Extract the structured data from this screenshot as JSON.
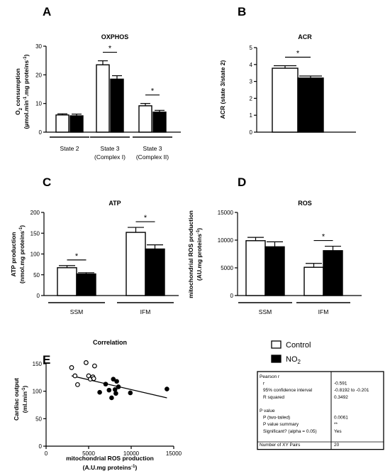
{
  "legend": [
    {
      "label": "Control",
      "color": "#ffffff"
    },
    {
      "label": "NO",
      "sub": "2",
      "color": "#000000"
    }
  ],
  "chart_data": [
    {
      "id": "A",
      "type": "bar",
      "title": "OXPHOS",
      "ylabel_line1": "O",
      "ylabel_sub": "2",
      "ylabel_rest": " consumption",
      "ylabel_line2": "(µmol.min",
      "ylabel_sup": "-1",
      "ylabel_line2b": ".mg proteins",
      "ylabel_sup2": "-1",
      "ylabel_end": ")",
      "ylim": [
        0,
        30
      ],
      "yticks": [
        "0",
        "10",
        "20",
        "30"
      ],
      "groups": [
        {
          "label": [
            "State 2"
          ],
          "control": 6.0,
          "control_err": 0.4,
          "no2": 5.7,
          "no2_err": 0.6,
          "sig": ""
        },
        {
          "label": [
            "State 3",
            "(Complex I)"
          ],
          "control": 23.5,
          "control_err": 1.4,
          "no2": 18.5,
          "no2_err": 1.2,
          "sig": "*"
        },
        {
          "label": [
            "State 3",
            "(Complex II)"
          ],
          "control": 9.2,
          "control_err": 0.8,
          "no2": 7.0,
          "no2_err": 0.6,
          "sig": "*"
        }
      ]
    },
    {
      "id": "B",
      "type": "bar",
      "title": "ACR",
      "ylabel_plain": "ACR (state 3/state 2)",
      "ylim": [
        0,
        5
      ],
      "yticks": [
        "0",
        "1",
        "2",
        "3",
        "4",
        "5"
      ],
      "groups": [
        {
          "label": [],
          "control": 3.78,
          "control_err": 0.15,
          "no2": 3.2,
          "no2_err": 0.12,
          "sig": "*"
        }
      ]
    },
    {
      "id": "C",
      "type": "bar",
      "title": "ATP",
      "ylabel_plain": "ATP production",
      "ylabel_line2": "(nmol.mg proteins",
      "ylabel_sup": "-1",
      "ylabel_end": ")",
      "ylim": [
        0,
        200
      ],
      "yticks": [
        "0",
        "50",
        "100",
        "150",
        "200"
      ],
      "groups": [
        {
          "label": [
            "SSM"
          ],
          "control": 67,
          "control_err": 5,
          "no2": 52,
          "no2_err": 3,
          "sig": "*"
        },
        {
          "label": [
            "IFM"
          ],
          "control": 152,
          "control_err": 12,
          "no2": 112,
          "no2_err": 10,
          "sig": "*"
        }
      ]
    },
    {
      "id": "D",
      "type": "bar",
      "title": "ROS",
      "ylabel_plain": "mitochondrial ROS production",
      "ylabel_line2": "(AU.mg proteins",
      "ylabel_sup": "-1",
      "ylabel_end": ")",
      "ylim": [
        0,
        15000
      ],
      "yticks": [
        "0",
        "5000",
        "10000",
        "15000"
      ],
      "groups": [
        {
          "label": [
            "SSM"
          ],
          "control": 9900,
          "control_err": 600,
          "no2": 8800,
          "no2_err": 900,
          "sig": ""
        },
        {
          "label": [
            "IFM"
          ],
          "control": 5100,
          "control_err": 700,
          "no2": 8100,
          "no2_err": 800,
          "sig": "*"
        }
      ]
    },
    {
      "id": "E",
      "type": "scatter",
      "title": "Correlation",
      "ylabel_plain": "Cardiac output",
      "ylabel_line2": "(ml.min",
      "ylabel_sup": "-1",
      "ylabel_end": ")",
      "xlabel_line1": "mitochondrial ROS production",
      "xlabel_line2": "(A.U.mg proteins",
      "xlabel_sup": "-1",
      "xlabel_end": ")",
      "xlim": [
        0,
        15000
      ],
      "ylim": [
        0,
        150
      ],
      "xticks": [
        "0",
        "5000",
        "10000",
        "15000"
      ],
      "yticks": [
        "0",
        "50",
        "100",
        "150"
      ],
      "control_points": [
        [
          3000,
          143
        ],
        [
          3400,
          128
        ],
        [
          3700,
          112
        ],
        [
          4700,
          152
        ],
        [
          5000,
          128
        ],
        [
          5200,
          122
        ],
        [
          5500,
          126
        ],
        [
          5700,
          146
        ],
        [
          5600,
          123
        ]
      ],
      "no2_points": [
        [
          6300,
          98
        ],
        [
          7000,
          113
        ],
        [
          7400,
          102
        ],
        [
          7700,
          88
        ],
        [
          7900,
          122
        ],
        [
          8100,
          103
        ],
        [
          8300,
          118
        ],
        [
          8500,
          108
        ],
        [
          8200,
          96
        ],
        [
          9900,
          97
        ],
        [
          14200,
          104
        ]
      ],
      "fit_line": [
        [
          3000,
          128
        ],
        [
          14200,
          88
        ]
      ]
    }
  ],
  "stats_table": {
    "rows": [
      [
        "Pearson r",
        ""
      ],
      [
        "r",
        "-0.591"
      ],
      [
        "95% confidence interval",
        "-0.8192 to -0.201"
      ],
      [
        "R squared",
        "0.3492"
      ],
      [
        "",
        ""
      ],
      [
        "P value",
        ""
      ],
      [
        "P (two-tailed)",
        "0.0061"
      ],
      [
        "P value summary",
        "**"
      ],
      [
        "Significant? (alpha = 0.05)",
        "Yes"
      ],
      [
        "",
        ""
      ],
      [
        "Number of XY Pairs",
        "20"
      ]
    ]
  }
}
